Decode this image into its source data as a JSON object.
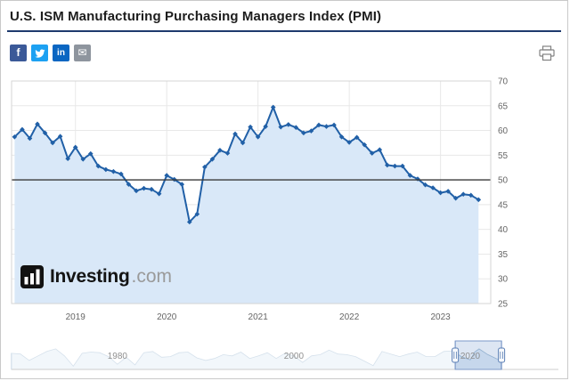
{
  "header": {
    "title": "U.S. ISM Manufacturing Purchasing Managers Index (PMI)"
  },
  "social": {
    "facebook_glyph": "f",
    "linkedin_glyph": "in",
    "email_glyph": "✉"
  },
  "icons": {
    "facebook": "facebook-icon",
    "twitter": "twitter-bird-icon",
    "linkedin": "linkedin-icon",
    "email": "email-envelope-icon",
    "print": "printer-icon"
  },
  "watermark": {
    "name": "Investing",
    "tld": ".com"
  },
  "chart_data": {
    "type": "line",
    "title": "U.S. ISM Manufacturing Purchasing Managers Index (PMI)",
    "x_start": 2018.333,
    "interval_months": 1,
    "values": [
      58.7,
      60.2,
      58.4,
      61.3,
      59.5,
      57.5,
      58.8,
      54.3,
      56.6,
      54.2,
      55.3,
      52.8,
      52.1,
      51.7,
      51.2,
      49.1,
      47.8,
      48.3,
      48.1,
      47.2,
      50.9,
      50.1,
      49.1,
      41.5,
      43.1,
      52.6,
      54.2,
      56.0,
      55.4,
      59.3,
      57.5,
      60.7,
      58.7,
      60.8,
      64.7,
      60.7,
      61.2,
      60.6,
      59.5,
      59.9,
      61.1,
      60.8,
      61.1,
      58.7,
      57.6,
      58.6,
      57.1,
      55.4,
      56.1,
      53.0,
      52.8,
      52.8,
      50.9,
      50.2,
      49.0,
      48.4,
      47.4,
      47.7,
      46.3,
      47.1,
      46.9,
      46.0
    ],
    "ylim": [
      25,
      70
    ],
    "y_ticks": [
      70,
      65,
      60,
      55,
      50,
      45,
      40,
      35,
      30,
      25
    ],
    "x_ticks": [
      2019,
      2020,
      2021,
      2022,
      2023
    ],
    "x_domain": [
      2018.3,
      2023.55
    ],
    "threshold": 50,
    "legend_position": "none",
    "grid": true,
    "line_color": "#2160a7",
    "fill_color": "#d9e8f8",
    "grid_color": "#e8e8e8",
    "threshold_color": "#3a3a3a",
    "axis_text_color": "#666666",
    "marker": "diamond",
    "navigator": {
      "x_domain": [
        1968,
        2030
      ],
      "labels": [
        1980,
        2000,
        2020
      ],
      "selection": [
        2018.3,
        2023.55
      ],
      "series": [
        [
          1968,
          55
        ],
        [
          1969,
          54
        ],
        [
          1970,
          44
        ],
        [
          1971,
          51
        ],
        [
          1972,
          58
        ],
        [
          1973,
          62
        ],
        [
          1974,
          51
        ],
        [
          1975,
          35
        ],
        [
          1976,
          55
        ],
        [
          1977,
          57
        ],
        [
          1978,
          56
        ],
        [
          1979,
          50
        ],
        [
          1980,
          38
        ],
        [
          1981,
          49
        ],
        [
          1982,
          37
        ],
        [
          1983,
          56
        ],
        [
          1984,
          58
        ],
        [
          1985,
          49
        ],
        [
          1986,
          50
        ],
        [
          1987,
          56
        ],
        [
          1988,
          57
        ],
        [
          1989,
          48
        ],
        [
          1990,
          44
        ],
        [
          1991,
          47
        ],
        [
          1992,
          53
        ],
        [
          1993,
          51
        ],
        [
          1994,
          57
        ],
        [
          1995,
          47
        ],
        [
          1996,
          51
        ],
        [
          1997,
          56
        ],
        [
          1998,
          47
        ],
        [
          1999,
          55
        ],
        [
          2000,
          51
        ],
        [
          2001,
          41
        ],
        [
          2002,
          51
        ],
        [
          2003,
          53
        ],
        [
          2004,
          60
        ],
        [
          2005,
          54
        ],
        [
          2006,
          53
        ],
        [
          2007,
          50
        ],
        [
          2008,
          43
        ],
        [
          2009,
          36
        ],
        [
          2010,
          58
        ],
        [
          2011,
          54
        ],
        [
          2012,
          50
        ],
        [
          2013,
          54
        ],
        [
          2014,
          57
        ],
        [
          2015,
          50
        ],
        [
          2016,
          50
        ],
        [
          2017,
          58
        ],
        [
          2018,
          59
        ],
        [
          2019,
          50
        ],
        [
          2020,
          45
        ],
        [
          2020.5,
          57
        ],
        [
          2021,
          62
        ],
        [
          2022,
          53
        ],
        [
          2023,
          46.5
        ],
        [
          2023.5,
          46
        ]
      ]
    }
  }
}
